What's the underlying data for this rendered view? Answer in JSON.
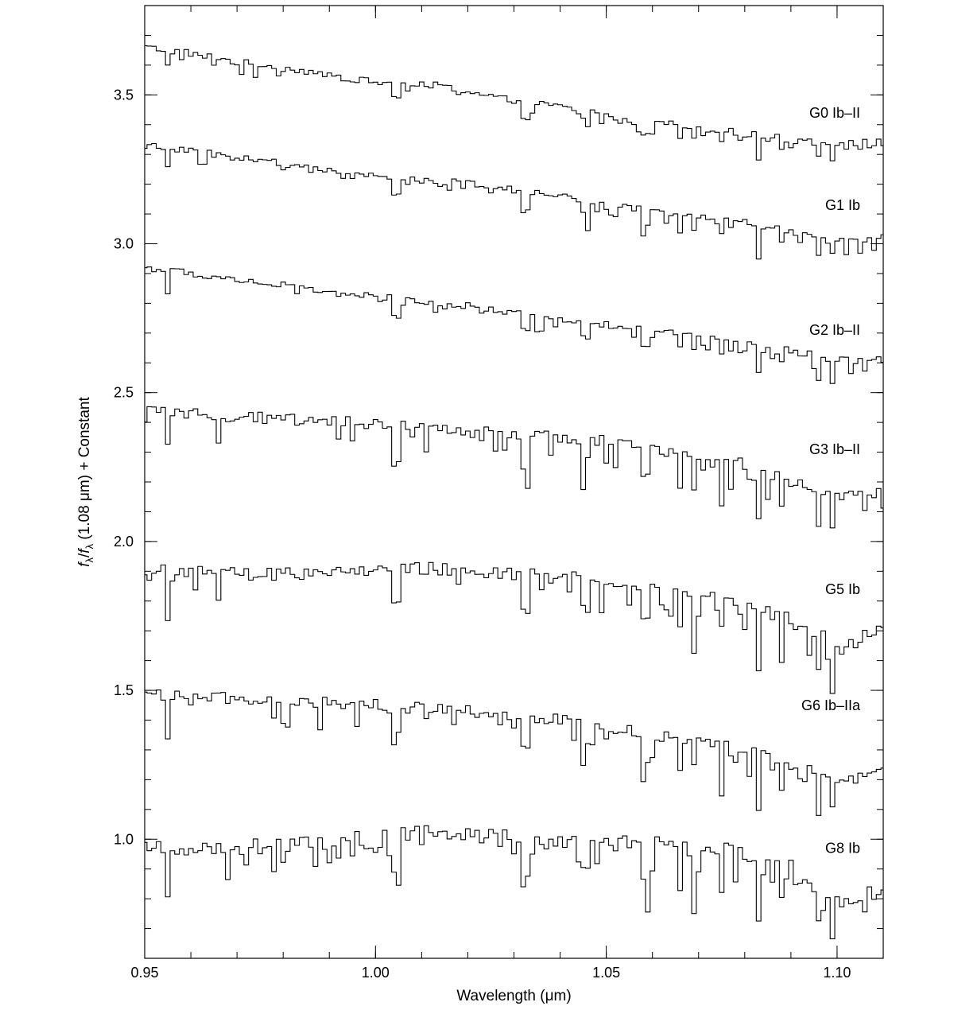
{
  "chart_data": {
    "type": "line",
    "title": "",
    "xlabel": "Wavelength (μm)",
    "ylabel_parts": {
      "f1": "f",
      "sub1": "λ",
      "slash": "/",
      "f2": "f",
      "sub2": "λ",
      "rest": " (1.08 μm) + Constant"
    },
    "xlim": [
      0.95,
      1.11
    ],
    "ylim": [
      0.6,
      3.8
    ],
    "x_ticks": [
      {
        "value": 0.95,
        "label": "0.95"
      },
      {
        "value": 1.0,
        "label": "1.00"
      },
      {
        "value": 1.05,
        "label": "1.05"
      },
      {
        "value": 1.1,
        "label": "1.10"
      }
    ],
    "y_ticks": [
      {
        "value": 1.0,
        "label": "1.0"
      },
      {
        "value": 1.5,
        "label": "1.5"
      },
      {
        "value": 2.0,
        "label": "2.0"
      },
      {
        "value": 2.5,
        "label": "2.5"
      },
      {
        "value": 3.0,
        "label": "3.0"
      },
      {
        "value": 3.5,
        "label": "3.5"
      }
    ],
    "x_minor_step": 0.01,
    "y_minor_step": 0.1,
    "grid": false,
    "legend": "none; each spectrum labelled at right",
    "wavelength_grid": {
      "start": 0.95,
      "end": 1.11,
      "step": 0.001
    },
    "absorption_lines": [
      {
        "x": 0.955,
        "depth": 0.7
      },
      {
        "x": 1.0047,
        "depth": 0.55
      },
      {
        "x": 1.0327,
        "depth": 0.6
      },
      {
        "x": 1.0456,
        "depth": 0.45
      },
      {
        "x": 1.0585,
        "depth": 0.5
      },
      {
        "x": 1.066,
        "depth": 0.5
      },
      {
        "x": 1.069,
        "depth": 0.55
      },
      {
        "x": 1.075,
        "depth": 0.4
      },
      {
        "x": 1.083,
        "depth": 1.0
      },
      {
        "x": 1.088,
        "depth": 0.5
      },
      {
        "x": 1.096,
        "depth": 0.6
      },
      {
        "x": 1.099,
        "depth": 0.45
      }
    ],
    "series": [
      {
        "name": "G0 Ib–II",
        "label_y": 3.44,
        "x": [
          0.95,
          0.96,
          0.97,
          0.98,
          0.99,
          1.0,
          1.01,
          1.02,
          1.03,
          1.04,
          1.05,
          1.06,
          1.07,
          1.08,
          1.09,
          1.1,
          1.11
        ],
        "y": [
          3.66,
          3.64,
          3.61,
          3.59,
          3.57,
          3.54,
          3.54,
          3.51,
          3.48,
          3.46,
          3.44,
          3.41,
          3.39,
          3.37,
          3.35,
          3.34,
          3.34
        ],
        "noise": 0.012,
        "line_strength": 0.06
      },
      {
        "name": "G1 Ib",
        "label_y": 3.13,
        "x": [
          0.95,
          0.96,
          0.97,
          0.98,
          0.99,
          1.0,
          1.01,
          1.02,
          1.03,
          1.04,
          1.05,
          1.06,
          1.07,
          1.08,
          1.09,
          1.1,
          1.11
        ],
        "y": [
          3.33,
          3.31,
          3.29,
          3.27,
          3.25,
          3.23,
          3.22,
          3.2,
          3.18,
          3.16,
          3.14,
          3.11,
          3.09,
          3.07,
          3.04,
          3.02,
          3.02
        ],
        "noise": 0.012,
        "line_strength": 0.08
      },
      {
        "name": "G2 Ib–II",
        "label_y": 2.71,
        "x": [
          0.95,
          0.96,
          0.97,
          0.98,
          0.99,
          1.0,
          1.01,
          1.02,
          1.03,
          1.04,
          1.05,
          1.06,
          1.07,
          1.08,
          1.09,
          1.1,
          1.11
        ],
        "y": [
          2.92,
          2.9,
          2.88,
          2.86,
          2.84,
          2.82,
          2.81,
          2.79,
          2.77,
          2.75,
          2.73,
          2.71,
          2.69,
          2.67,
          2.64,
          2.61,
          2.61
        ],
        "noise": 0.012,
        "line_strength": 0.08
      },
      {
        "name": "G3 Ib–II",
        "label_y": 2.31,
        "x": [
          0.95,
          0.96,
          0.97,
          0.98,
          0.99,
          1.0,
          1.01,
          1.02,
          1.03,
          1.04,
          1.05,
          1.06,
          1.07,
          1.08,
          1.09,
          1.1,
          1.11
        ],
        "y": [
          2.44,
          2.43,
          2.42,
          2.41,
          2.41,
          2.39,
          2.38,
          2.37,
          2.36,
          2.35,
          2.34,
          2.31,
          2.29,
          2.26,
          2.2,
          2.15,
          2.18
        ],
        "noise": 0.02,
        "line_strength": 0.14
      },
      {
        "name": "G5 Ib",
        "label_y": 1.84,
        "x": [
          0.95,
          0.96,
          0.97,
          0.98,
          0.99,
          1.0,
          1.01,
          1.02,
          1.03,
          1.04,
          1.05,
          1.06,
          1.07,
          1.08,
          1.09,
          1.1,
          1.11
        ],
        "y": [
          1.9,
          1.9,
          1.89,
          1.89,
          1.9,
          1.9,
          1.91,
          1.9,
          1.89,
          1.88,
          1.87,
          1.85,
          1.83,
          1.8,
          1.74,
          1.66,
          1.7
        ],
        "noise": 0.022,
        "line_strength": 0.16
      },
      {
        "name": "G6 Ib–IIa",
        "label_y": 1.45,
        "x": [
          0.95,
          0.96,
          0.97,
          0.98,
          0.99,
          1.0,
          1.01,
          1.02,
          1.03,
          1.04,
          1.05,
          1.06,
          1.07,
          1.08,
          1.09,
          1.1,
          1.11
        ],
        "y": [
          1.49,
          1.48,
          1.47,
          1.46,
          1.46,
          1.45,
          1.44,
          1.43,
          1.42,
          1.4,
          1.38,
          1.35,
          1.33,
          1.3,
          1.25,
          1.2,
          1.22
        ],
        "noise": 0.02,
        "line_strength": 0.14
      },
      {
        "name": "G8 Ib",
        "label_y": 0.97,
        "x": [
          0.95,
          0.96,
          0.97,
          0.98,
          0.99,
          1.0,
          1.01,
          1.02,
          1.03,
          1.04,
          1.05,
          1.06,
          1.07,
          1.08,
          1.09,
          1.1,
          1.11
        ],
        "y": [
          0.96,
          0.97,
          0.97,
          0.98,
          0.99,
          1.0,
          1.02,
          1.01,
          1.0,
          0.99,
          0.99,
          0.98,
          0.97,
          0.95,
          0.9,
          0.8,
          0.82
        ],
        "noise": 0.03,
        "line_strength": 0.17
      }
    ]
  }
}
